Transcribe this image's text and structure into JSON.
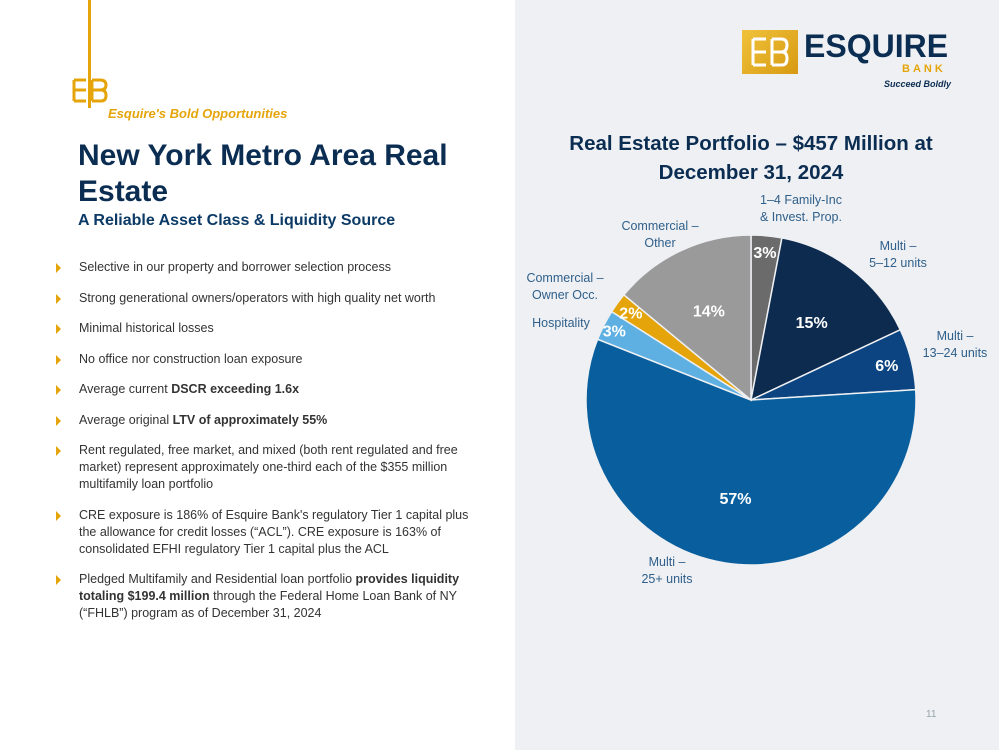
{
  "header": {
    "tagline_prefix": "Esquire's",
    "tagline_suffix": "Bold Opportunities",
    "title": "New York Metro Area Real Estate",
    "subtitle": "A Reliable Asset Class & Liquidity Source"
  },
  "colors": {
    "accent_gold": "#e5a50a",
    "navy": "#0b2d52"
  },
  "bullets": [
    {
      "pre": "Selective in our property and borrower selection process",
      "bold": "",
      "post": ""
    },
    {
      "pre": "Strong generational owners/operators with high quality net worth",
      "bold": "",
      "post": ""
    },
    {
      "pre": "Minimal historical losses",
      "bold": "",
      "post": ""
    },
    {
      "pre": "No office nor construction loan exposure",
      "bold": "",
      "post": ""
    },
    {
      "pre": "Average current ",
      "bold": "DSCR exceeding 1.6x",
      "post": ""
    },
    {
      "pre": "Average original ",
      "bold": "LTV of approximately 55%",
      "post": ""
    },
    {
      "pre": "Rent regulated, free market, and mixed (both rent regulated and free market) represent approximately one-third each of the $355 million multifamily loan portfolio",
      "bold": "",
      "post": ""
    },
    {
      "pre": "CRE exposure is 186% of Esquire Bank's regulatory Tier 1 capital plus the allowance for credit losses (“ACL”). CRE exposure is 163% of consolidated EFHI regulatory Tier 1 capital plus the ACL",
      "bold": "",
      "post": ""
    },
    {
      "pre": "Pledged Multifamily and Residential loan portfolio ",
      "bold": "provides liquidity totaling $199.4 million",
      "post": " through the Federal Home Loan Bank of NY (“FHLB”) program as of December 31, 2024"
    }
  ],
  "logo": {
    "name": "ESQUIRE",
    "bank": "BANK",
    "slogan": "Succeed Boldly"
  },
  "chart_data": {
    "type": "pie",
    "title": "Real Estate Portfolio – $457 Million at December 31, 2024",
    "slices": [
      {
        "label": "1–4 Family-Inc & Invest. Prop.",
        "value": 3,
        "display": "3%",
        "color": "#6b6b6b"
      },
      {
        "label": "Multi – 5–12 units",
        "value": 15,
        "display": "15%",
        "color": "#0d2a4f"
      },
      {
        "label": "Multi – 13–24 units",
        "value": 6,
        "display": "6%",
        "color": "#0b4480"
      },
      {
        "label": "Multi – 25+ units",
        "value": 57,
        "display": "57%",
        "color": "#095f9e"
      },
      {
        "label": "Hospitality",
        "value": 3,
        "display": "3%",
        "color": "#5fb0e2"
      },
      {
        "label": "Commercial – Owner Occ.",
        "value": 2,
        "display": "2%",
        "color": "#e5a50a"
      },
      {
        "label": "Commercial – Other",
        "value": 14,
        "display": "14%",
        "color": "#9a9a9a"
      }
    ],
    "category_labels": [
      [
        "1–4 Family-Inc",
        "& Invest. Prop."
      ],
      [
        "Multi –",
        "5–12 units"
      ],
      [
        "Multi –",
        "13–24 units"
      ],
      [
        "Multi –",
        "25+ units"
      ],
      [
        "Hospitality"
      ],
      [
        "Commercial –",
        "Owner Occ."
      ],
      [
        "Commercial –",
        "Other"
      ]
    ]
  },
  "footer": {
    "page_number": "11"
  }
}
